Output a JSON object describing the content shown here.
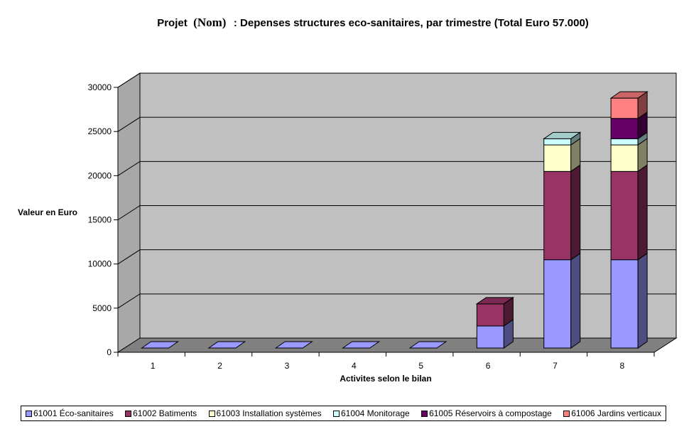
{
  "chart_data": {
    "type": "bar",
    "stacked": true,
    "three_d": true,
    "title_prefix": "Projet",
    "title_name": "(Nom)",
    "title_suffix": ": Depenses structures eco-sanitaires, par trimestre (Total Euro 57.000)",
    "xlabel": "Activites selon le bilan",
    "ylabel": "Valeur en Euro",
    "ylim": [
      0,
      30000
    ],
    "yticks": [
      "0",
      "5000",
      "10000",
      "15000",
      "20000",
      "25000",
      "30000"
    ],
    "grid": true,
    "legend_position": "bottom",
    "categories": [
      "1",
      "2",
      "3",
      "4",
      "5",
      "6",
      "7",
      "8"
    ],
    "series": [
      {
        "name": "61001 Éco-sanitaires",
        "color": "#9999ff",
        "values": [
          0,
          0,
          0,
          0,
          0,
          2500,
          10000,
          10000
        ]
      },
      {
        "name": "61002 Batiments",
        "color": "#993366",
        "values": [
          0,
          0,
          0,
          0,
          0,
          2500,
          10000,
          10000
        ]
      },
      {
        "name": "61003 Installation systèmes",
        "color": "#ffffcc",
        "values": [
          0,
          0,
          0,
          0,
          0,
          0,
          3000,
          3000
        ]
      },
      {
        "name": "61004 Monitorage",
        "color": "#ccffff",
        "values": [
          0,
          0,
          0,
          0,
          0,
          0,
          700,
          700
        ]
      },
      {
        "name": "61005 Réservoirs à compostage",
        "color": "#660066",
        "values": [
          0,
          0,
          0,
          0,
          0,
          0,
          0,
          2300
        ]
      },
      {
        "name": "61006 Jardins verticaux",
        "color": "#ff8080",
        "values": [
          0,
          0,
          0,
          0,
          0,
          0,
          0,
          2300
        ]
      }
    ]
  },
  "colors": {
    "wall": "#c0c0c0",
    "wall_side": "#a8a8a8",
    "floor": "#808080"
  }
}
